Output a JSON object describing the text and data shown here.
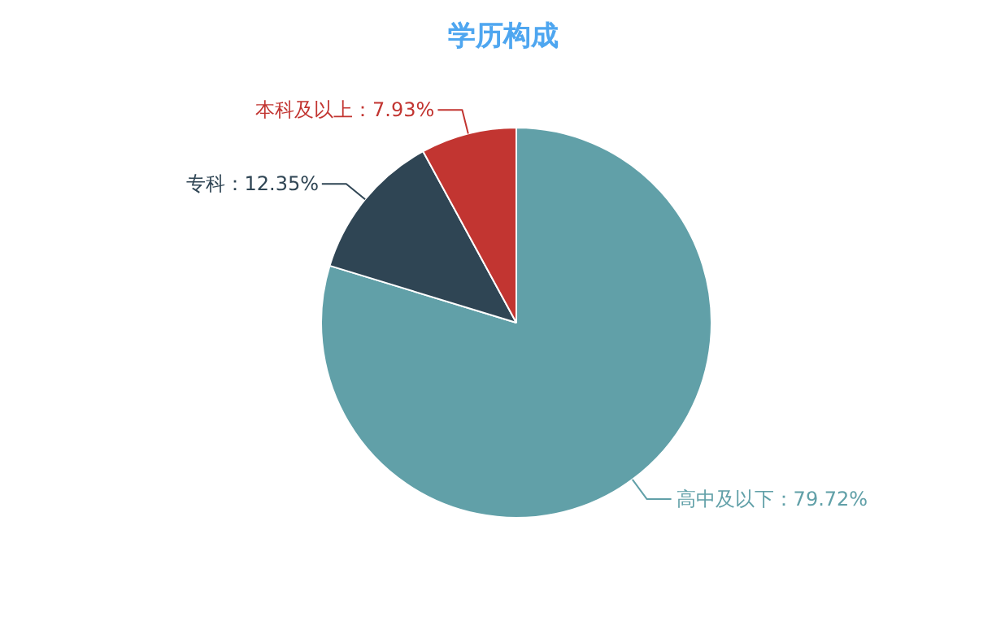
{
  "chart_data": {
    "type": "pie",
    "title": "学历构成",
    "categories": [
      "高中及以下",
      "专科",
      "本科及以上"
    ],
    "values": [
      79.72,
      12.35,
      7.93
    ],
    "colors": [
      "#61a0a8",
      "#2f4554",
      "#c23531"
    ],
    "value_labels": [
      "：79.72%",
      "：12.35%",
      "：7.93%"
    ]
  }
}
